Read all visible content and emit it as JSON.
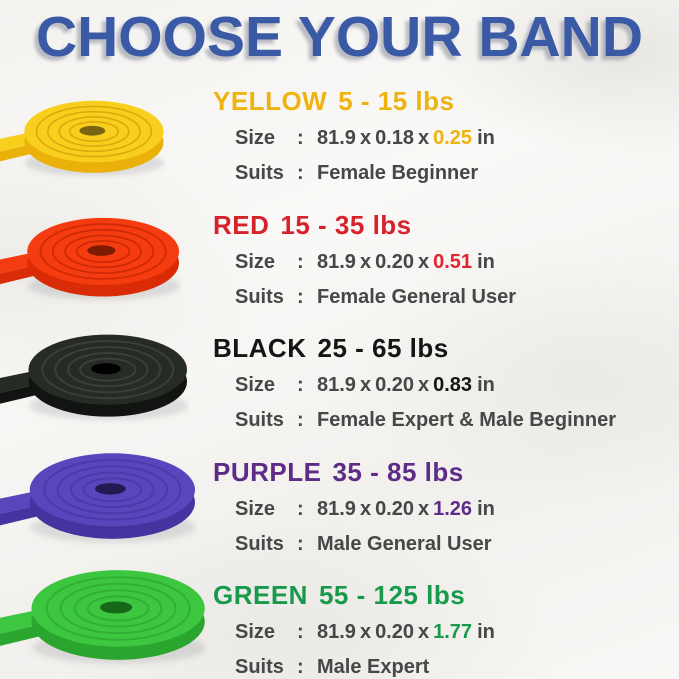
{
  "title": "CHOOSE YOUR BAND",
  "labels": {
    "size": "Size",
    "suits": "Suits",
    "colon": ":",
    "sep": "x",
    "unit": "in"
  },
  "bands": [
    {
      "name": "YELLOW",
      "range": "5 - 15 lbs",
      "dim1": "81.9",
      "dim2": "0.18",
      "dim3": "0.25",
      "suits": "Female Beginner",
      "colors": {
        "heading": "#EFB30F",
        "highlight": "#EFB30F",
        "main": "#F9CF1E",
        "side": "#EAB10B",
        "ring": "#DFA90E",
        "hole": "#77650F"
      }
    },
    {
      "name": "RED",
      "range": "15 - 35 lbs",
      "dim1": "81.9",
      "dim2": "0.20",
      "dim3": "0.51",
      "suits": "Female General User",
      "colors": {
        "heading": "#D6232B",
        "highlight": "#E02430",
        "main": "#F53C10",
        "side": "#D92B05",
        "ring": "#CE2A07",
        "hole": "#7E1A02"
      }
    },
    {
      "name": "BLACK",
      "range": "25 - 65 lbs",
      "dim1": "81.9",
      "dim2": "0.20",
      "dim3": "0.83",
      "suits": "Female Expert & Male Beginner",
      "colors": {
        "heading": "#151515",
        "highlight": "#151515",
        "main": "#262B26",
        "side": "#111411",
        "ring": "#3A403A",
        "hole": "#000000"
      }
    },
    {
      "name": "PURPLE",
      "range": "35 - 85 lbs",
      "dim1": "81.9",
      "dim2": "0.20",
      "dim3": "1.26",
      "suits": "Male General User",
      "colors": {
        "heading": "#5E2B87",
        "highlight": "#5E2B87",
        "main": "#5A45BC",
        "side": "#47339F",
        "ring": "#4C38A8",
        "hole": "#241A52"
      }
    },
    {
      "name": "GREEN",
      "range": "55 - 125 lbs",
      "dim1": "81.9",
      "dim2": "0.20",
      "dim3": "1.77",
      "suits": "Male Expert",
      "colors": {
        "heading": "#179A4B",
        "highlight": "#179A4B",
        "main": "#3DC741",
        "side": "#2AA52E",
        "ring": "#31B035",
        "hole": "#156818"
      }
    }
  ],
  "theme": {
    "title_color": "#3B5AA6",
    "text_color": "#474747",
    "background": "#F6F5F2"
  }
}
